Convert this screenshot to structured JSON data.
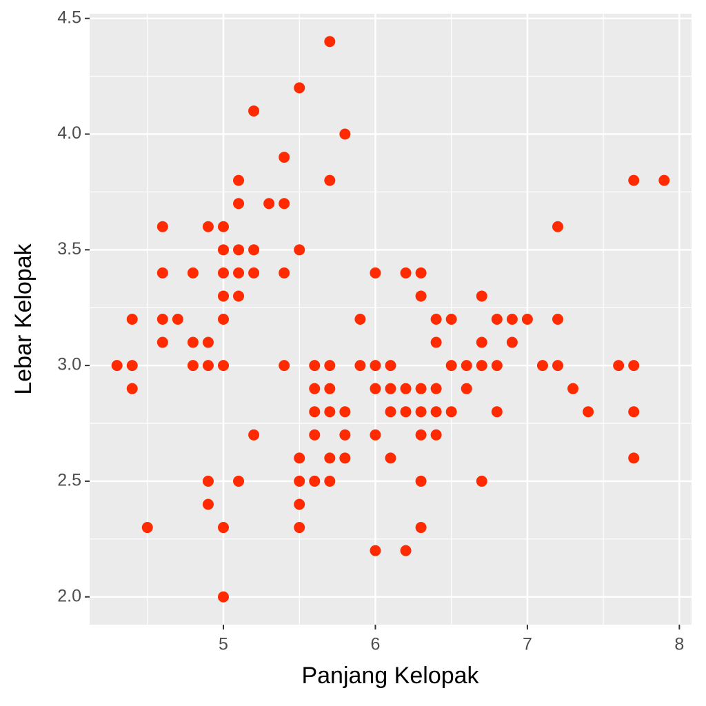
{
  "chart_data": {
    "type": "scatter",
    "x_label": "Panjang Kelopak",
    "y_label": "Lebar Kelopak",
    "color": "#ff2a00",
    "grid": true,
    "xlim": [
      4.12,
      8.08
    ],
    "ylim": [
      1.88,
      4.52
    ],
    "xticks": [
      5,
      6,
      7,
      8
    ],
    "yticks": [
      {
        "value": 2,
        "label": "2.0"
      },
      2.5,
      {
        "value": 3,
        "label": "3.0"
      },
      3.5,
      {
        "value": 4,
        "label": "4.0"
      },
      4.5
    ],
    "series": [
      {
        "name": "points",
        "x": [
          5.7,
          5.5,
          5.2,
          5.8,
          5.4,
          5.1,
          5.7,
          7.7,
          7.9,
          5.1,
          5.3,
          5.4,
          4.6,
          4.9,
          5.0,
          7.2,
          5.0,
          5.1,
          5.2,
          5.5,
          4.6,
          4.8,
          5.0,
          5.1,
          5.2,
          5.4,
          6.0,
          6.2,
          6.3,
          5.0,
          5.1,
          6.3,
          6.7,
          4.4,
          4.6,
          4.7,
          5.0,
          5.9,
          6.4,
          6.5,
          6.8,
          6.9,
          7.0,
          7.2,
          4.6,
          4.8,
          4.9,
          6.4,
          6.7,
          6.9,
          4.3,
          4.4,
          4.8,
          4.9,
          5.0,
          5.4,
          5.6,
          5.7,
          5.9,
          6.0,
          6.1,
          6.5,
          6.6,
          6.7,
          6.8,
          7.1,
          7.2,
          7.6,
          7.7,
          4.4,
          5.6,
          5.7,
          6.0,
          6.1,
          6.2,
          6.3,
          6.4,
          6.6,
          7.3,
          5.6,
          5.7,
          5.8,
          6.1,
          6.2,
          6.3,
          6.4,
          6.5,
          6.8,
          7.4,
          7.7,
          5.2,
          5.6,
          5.8,
          6.0,
          6.3,
          6.4,
          5.5,
          5.7,
          5.8,
          6.1,
          7.7,
          4.9,
          5.1,
          5.5,
          5.6,
          5.7,
          6.3,
          6.7,
          4.9,
          5.5,
          4.5,
          5.0,
          5.5,
          6.3,
          6.0,
          6.2,
          5.0
        ],
        "values": [
          4.4,
          4.2,
          4.1,
          4.0,
          3.9,
          3.8,
          3.8,
          3.8,
          3.8,
          3.7,
          3.7,
          3.7,
          3.6,
          3.6,
          3.6,
          3.6,
          3.5,
          3.5,
          3.5,
          3.5,
          3.4,
          3.4,
          3.4,
          3.4,
          3.4,
          3.4,
          3.4,
          3.4,
          3.4,
          3.3,
          3.3,
          3.3,
          3.3,
          3.2,
          3.2,
          3.2,
          3.2,
          3.2,
          3.2,
          3.2,
          3.2,
          3.2,
          3.2,
          3.2,
          3.1,
          3.1,
          3.1,
          3.1,
          3.1,
          3.1,
          3.0,
          3.0,
          3.0,
          3.0,
          3.0,
          3.0,
          3.0,
          3.0,
          3.0,
          3.0,
          3.0,
          3.0,
          3.0,
          3.0,
          3.0,
          3.0,
          3.0,
          3.0,
          3.0,
          2.9,
          2.9,
          2.9,
          2.9,
          2.9,
          2.9,
          2.9,
          2.9,
          2.9,
          2.9,
          2.8,
          2.8,
          2.8,
          2.8,
          2.8,
          2.8,
          2.8,
          2.8,
          2.8,
          2.8,
          2.8,
          2.7,
          2.7,
          2.7,
          2.7,
          2.7,
          2.7,
          2.6,
          2.6,
          2.6,
          2.6,
          2.6,
          2.5,
          2.5,
          2.5,
          2.5,
          2.5,
          2.5,
          2.5,
          2.4,
          2.4,
          2.3,
          2.3,
          2.3,
          2.3,
          2.2,
          2.2,
          2.0
        ]
      }
    ]
  }
}
